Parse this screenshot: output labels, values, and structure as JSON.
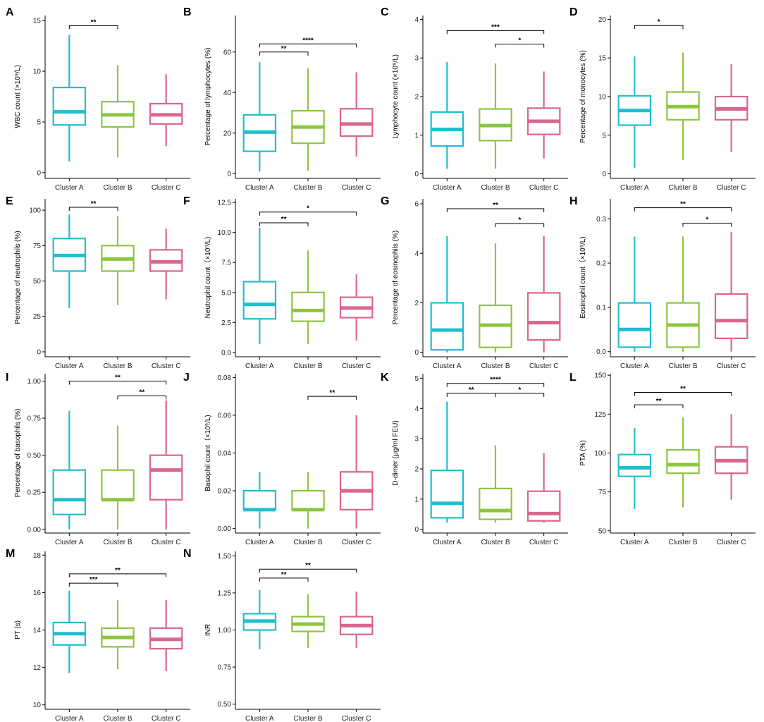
{
  "colors": {
    "Cluster A": "#20bfcf",
    "Cluster B": "#8dc63f",
    "Cluster C": "#d9668f"
  },
  "chart_data": [
    {
      "type": "boxplot",
      "panel": "A",
      "ylabel": "WBC count (×10⁹/L)",
      "ylim": [
        -0.5,
        15.5
      ],
      "yticks": [
        0,
        5,
        10,
        15
      ],
      "ytick_labels": [
        "0",
        "5",
        "10",
        "15"
      ],
      "categories": [
        "Cluster A",
        "Cluster B",
        "Cluster C"
      ],
      "boxes": [
        {
          "min": 1.1,
          "q1": 4.7,
          "median": 6.0,
          "q3": 8.4,
          "max": 13.6
        },
        {
          "min": 1.5,
          "q1": 4.5,
          "median": 5.7,
          "q3": 7.0,
          "max": 10.6
        },
        {
          "min": 2.6,
          "q1": 4.8,
          "median": 5.7,
          "q3": 6.8,
          "max": 9.7
        }
      ],
      "significance": [
        {
          "from": 0,
          "to": 1,
          "y": 14.5,
          "label": "**"
        }
      ]
    },
    {
      "type": "boxplot",
      "panel": "B",
      "ylabel": "Percentage of lymphocytes (%)",
      "ylim": [
        -2,
        78
      ],
      "yticks": [
        0,
        20,
        40,
        60
      ],
      "ytick_labels": [
        "0",
        "20",
        "40",
        "60"
      ],
      "categories": [
        "Cluster A",
        "Cluster B",
        "Cluster C"
      ],
      "boxes": [
        {
          "min": 1,
          "q1": 11,
          "median": 20.5,
          "q3": 29,
          "max": 55
        },
        {
          "min": 1.5,
          "q1": 15,
          "median": 23,
          "q3": 31,
          "max": 52
        },
        {
          "min": 8.5,
          "q1": 18.5,
          "median": 24.5,
          "q3": 32,
          "max": 50
        }
      ],
      "significance": [
        {
          "from": 0,
          "to": 1,
          "y": 60,
          "label": "**"
        },
        {
          "from": 0,
          "to": 2,
          "y": 64,
          "label": "****"
        }
      ]
    },
    {
      "type": "boxplot",
      "panel": "C",
      "ylabel": "Lymphocyte count (×10⁹/L)",
      "ylim": [
        -0.1,
        4.1
      ],
      "yticks": [
        0,
        1,
        2,
        3,
        4
      ],
      "ytick_labels": [
        "0",
        "1",
        "2",
        "3",
        "4"
      ],
      "categories": [
        "Cluster A",
        "Cluster B",
        "Cluster C"
      ],
      "boxes": [
        {
          "min": 0.13,
          "q1": 0.72,
          "median": 1.15,
          "q3": 1.6,
          "max": 2.9
        },
        {
          "min": 0.13,
          "q1": 0.86,
          "median": 1.25,
          "q3": 1.68,
          "max": 2.86
        },
        {
          "min": 0.4,
          "q1": 1.02,
          "median": 1.36,
          "q3": 1.7,
          "max": 2.65
        }
      ],
      "significance": [
        {
          "from": 1,
          "to": 2,
          "y": 3.36,
          "label": "*"
        },
        {
          "from": 0,
          "to": 2,
          "y": 3.71,
          "label": "***"
        }
      ]
    },
    {
      "type": "boxplot",
      "panel": "D",
      "ylabel": "Percentage of monocytes (%)",
      "ylim": [
        -0.5,
        20.5
      ],
      "yticks": [
        0,
        5,
        10,
        15,
        20
      ],
      "ytick_labels": [
        "0",
        "5",
        "10",
        "15",
        "20"
      ],
      "categories": [
        "Cluster A",
        "Cluster B",
        "Cluster C"
      ],
      "boxes": [
        {
          "min": 0.8,
          "q1": 6.3,
          "median": 8.2,
          "q3": 10.1,
          "max": 15.2
        },
        {
          "min": 1.8,
          "q1": 7.0,
          "median": 8.7,
          "q3": 10.6,
          "max": 15.7
        },
        {
          "min": 2.8,
          "q1": 7.0,
          "median": 8.4,
          "q3": 10.0,
          "max": 14.2
        }
      ],
      "significance": [
        {
          "from": 0,
          "to": 1,
          "y": 19.2,
          "label": "*"
        }
      ]
    },
    {
      "type": "boxplot",
      "panel": "E",
      "ylabel": "Percentage of neutrophils (%)",
      "ylim": [
        -3,
        108
      ],
      "yticks": [
        0,
        25,
        50,
        75,
        100
      ],
      "ytick_labels": [
        "0",
        "25",
        "50",
        "75",
        "100"
      ],
      "categories": [
        "Cluster A",
        "Cluster B",
        "Cluster C"
      ],
      "boxes": [
        {
          "min": 31,
          "q1": 57,
          "median": 68,
          "q3": 80,
          "max": 97
        },
        {
          "min": 33,
          "q1": 57,
          "median": 65.5,
          "q3": 75,
          "max": 96
        },
        {
          "min": 37,
          "q1": 57,
          "median": 63.5,
          "q3": 72,
          "max": 87
        }
      ],
      "significance": [
        {
          "from": 0,
          "to": 1,
          "y": 102,
          "label": "**"
        }
      ]
    },
    {
      "type": "boxplot",
      "panel": "F",
      "ylabel": "Neutrophil count（×10⁹/L)",
      "ylim": [
        -0.3,
        12.8
      ],
      "yticks": [
        0,
        2.5,
        5,
        7.5,
        10,
        12.5
      ],
      "ytick_labels": [
        "0.0",
        "2.5",
        "5.0",
        "7.5",
        "10.0",
        "12.5"
      ],
      "categories": [
        "Cluster A",
        "Cluster B",
        "Cluster C"
      ],
      "boxes": [
        {
          "min": 0.7,
          "q1": 2.8,
          "median": 4.0,
          "q3": 5.9,
          "max": 10.4
        },
        {
          "min": 0.7,
          "q1": 2.6,
          "median": 3.5,
          "q3": 5.0,
          "max": 8.5
        },
        {
          "min": 1.0,
          "q1": 2.9,
          "median": 3.7,
          "q3": 4.6,
          "max": 6.5
        }
      ],
      "significance": [
        {
          "from": 0,
          "to": 1,
          "y": 10.8,
          "label": "**"
        },
        {
          "from": 0,
          "to": 2,
          "y": 11.7,
          "label": "*"
        }
      ]
    },
    {
      "type": "boxplot",
      "panel": "G",
      "ylabel": "Percentage of eosinophils (%)",
      "ylim": [
        -0.15,
        6.2
      ],
      "yticks": [
        0,
        2,
        4,
        6
      ],
      "ytick_labels": [
        "0",
        "2",
        "4",
        "6"
      ],
      "categories": [
        "Cluster A",
        "Cluster B",
        "Cluster C"
      ],
      "boxes": [
        {
          "min": 0.0,
          "q1": 0.1,
          "median": 0.9,
          "q3": 2.0,
          "max": 4.7
        },
        {
          "min": 0.0,
          "q1": 0.2,
          "median": 1.1,
          "q3": 1.9,
          "max": 4.4
        },
        {
          "min": 0.0,
          "q1": 0.5,
          "median": 1.2,
          "q3": 2.4,
          "max": 4.7
        }
      ],
      "significance": [
        {
          "from": 1,
          "to": 2,
          "y": 5.2,
          "label": "*"
        },
        {
          "from": 0,
          "to": 2,
          "y": 5.8,
          "label": "**"
        }
      ]
    },
    {
      "type": "boxplot",
      "panel": "H",
      "ylabel": "Eosinophil count（×10⁹/L)",
      "ylim": [
        -0.01,
        0.345
      ],
      "yticks": [
        0,
        0.1,
        0.2,
        0.3
      ],
      "ytick_labels": [
        "0.0",
        "0.1",
        "0.2",
        "0.3"
      ],
      "categories": [
        "Cluster A",
        "Cluster B",
        "Cluster C"
      ],
      "boxes": [
        {
          "min": 0.0,
          "q1": 0.01,
          "median": 0.05,
          "q3": 0.11,
          "max": 0.26
        },
        {
          "min": 0.0,
          "q1": 0.01,
          "median": 0.06,
          "q3": 0.11,
          "max": 0.26
        },
        {
          "min": 0.0,
          "q1": 0.03,
          "median": 0.07,
          "q3": 0.13,
          "max": 0.27
        }
      ],
      "significance": [
        {
          "from": 1,
          "to": 2,
          "y": 0.29,
          "label": "*"
        },
        {
          "from": 0,
          "to": 2,
          "y": 0.325,
          "label": "**"
        }
      ]
    },
    {
      "type": "boxplot",
      "panel": "I",
      "ylabel": "Percentage of basophils (%)",
      "ylim": [
        -0.02,
        1.05
      ],
      "yticks": [
        0,
        0.25,
        0.5,
        0.75,
        1.0
      ],
      "ytick_labels": [
        "0.00",
        "0.25",
        "0.50",
        "0.75",
        "1.00"
      ],
      "categories": [
        "Cluster A",
        "Cluster B",
        "Cluster C"
      ],
      "boxes": [
        {
          "min": 0.0,
          "q1": 0.1,
          "median": 0.2,
          "q3": 0.4,
          "max": 0.8
        },
        {
          "min": 0.0,
          "q1": 0.2,
          "median": 0.2,
          "q3": 0.4,
          "max": 0.7
        },
        {
          "min": 0.0,
          "q1": 0.2,
          "median": 0.4,
          "q3": 0.5,
          "max": 0.87
        }
      ],
      "significance": [
        {
          "from": 1,
          "to": 2,
          "y": 0.9,
          "label": "**"
        },
        {
          "from": 0,
          "to": 2,
          "y": 1.0,
          "label": "**"
        }
      ]
    },
    {
      "type": "boxplot",
      "panel": "J",
      "ylabel": "Basophil count（×10⁹/L)",
      "ylim": [
        -0.002,
        0.082
      ],
      "yticks": [
        0,
        0.02,
        0.04,
        0.06,
        0.08
      ],
      "ytick_labels": [
        "0.00",
        "0.02",
        "0.04",
        "0.06",
        "0.08"
      ],
      "categories": [
        "Cluster A",
        "Cluster B",
        "Cluster C"
      ],
      "boxes": [
        {
          "min": 0.0,
          "q1": 0.01,
          "median": 0.01,
          "q3": 0.02,
          "max": 0.03
        },
        {
          "min": 0.0,
          "q1": 0.01,
          "median": 0.01,
          "q3": 0.02,
          "max": 0.03
        },
        {
          "min": 0.0,
          "q1": 0.01,
          "median": 0.02,
          "q3": 0.03,
          "max": 0.06
        }
      ],
      "significance": [
        {
          "from": 1,
          "to": 2,
          "y": 0.07,
          "label": "**"
        }
      ]
    },
    {
      "type": "boxplot",
      "panel": "K",
      "ylabel": "D-dimer (μg/ml FEU)",
      "ylim": [
        -0.1,
        5.15
      ],
      "yticks": [
        0,
        1,
        2,
        3,
        4,
        5
      ],
      "ytick_labels": [
        "0",
        "1",
        "2",
        "3",
        "4",
        "5"
      ],
      "categories": [
        "Cluster A",
        "Cluster B",
        "Cluster C"
      ],
      "boxes": [
        {
          "min": 0.22,
          "q1": 0.38,
          "median": 0.86,
          "q3": 1.95,
          "max": 4.22
        },
        {
          "min": 0.22,
          "q1": 0.33,
          "median": 0.62,
          "q3": 1.35,
          "max": 2.78
        },
        {
          "min": 0.22,
          "q1": 0.28,
          "median": 0.52,
          "q3": 1.26,
          "max": 2.53
        }
      ],
      "significance": [
        {
          "from": 0,
          "to": 1,
          "y": 4.5,
          "label": "**"
        },
        {
          "from": 1,
          "to": 2,
          "y": 4.5,
          "label": "*"
        },
        {
          "from": 0,
          "to": 2,
          "y": 4.83,
          "label": "****"
        }
      ]
    },
    {
      "type": "boxplot",
      "panel": "L",
      "ylabel": "PTA (%)",
      "ylim": [
        49,
        151
      ],
      "yticks": [
        50,
        75,
        100,
        125,
        150
      ],
      "ytick_labels": [
        "50",
        "75",
        "100",
        "125",
        "150"
      ],
      "categories": [
        "Cluster A",
        "Cluster B",
        "Cluster C"
      ],
      "boxes": [
        {
          "min": 64,
          "q1": 85,
          "median": 90.5,
          "q3": 99,
          "max": 116
        },
        {
          "min": 65,
          "q1": 87,
          "median": 92.5,
          "q3": 102,
          "max": 123
        },
        {
          "min": 70,
          "q1": 87,
          "median": 95,
          "q3": 104,
          "max": 125
        }
      ],
      "significance": [
        {
          "from": 0,
          "to": 1,
          "y": 131,
          "label": "**"
        },
        {
          "from": 0,
          "to": 2,
          "y": 139,
          "label": "**"
        }
      ]
    },
    {
      "type": "boxplot",
      "panel": "M",
      "ylabel": "PT (s)",
      "ylim": [
        9.8,
        18.2
      ],
      "yticks": [
        10,
        12,
        14,
        16,
        18
      ],
      "ytick_labels": [
        "10",
        "12",
        "14",
        "16",
        "18"
      ],
      "categories": [
        "Cluster A",
        "Cluster B",
        "Cluster C"
      ],
      "boxes": [
        {
          "min": 11.7,
          "q1": 13.2,
          "median": 13.8,
          "q3": 14.4,
          "max": 16.1
        },
        {
          "min": 11.9,
          "q1": 13.1,
          "median": 13.6,
          "q3": 14.1,
          "max": 15.6
        },
        {
          "min": 11.8,
          "q1": 13.0,
          "median": 13.5,
          "q3": 14.1,
          "max": 15.6
        }
      ],
      "significance": [
        {
          "from": 0,
          "to": 1,
          "y": 16.5,
          "label": "***"
        },
        {
          "from": 0,
          "to": 2,
          "y": 17.0,
          "label": "**"
        }
      ]
    },
    {
      "type": "boxplot",
      "panel": "N",
      "ylabel": "INR",
      "ylim": [
        0.47,
        1.53
      ],
      "yticks": [
        0.5,
        0.75,
        1.0,
        1.25,
        1.5
      ],
      "ytick_labels": [
        "0.50",
        "0.75",
        "1.00",
        "1.25",
        "1.50"
      ],
      "categories": [
        "Cluster A",
        "Cluster B",
        "Cluster C"
      ],
      "boxes": [
        {
          "min": 0.87,
          "q1": 1.0,
          "median": 1.06,
          "q3": 1.11,
          "max": 1.27
        },
        {
          "min": 0.88,
          "q1": 0.99,
          "median": 1.04,
          "q3": 1.09,
          "max": 1.24
        },
        {
          "min": 0.88,
          "q1": 0.97,
          "median": 1.03,
          "q3": 1.09,
          "max": 1.26
        }
      ],
      "significance": [
        {
          "from": 0,
          "to": 1,
          "y": 1.35,
          "label": "**"
        },
        {
          "from": 0,
          "to": 2,
          "y": 1.41,
          "label": "**"
        }
      ]
    }
  ]
}
